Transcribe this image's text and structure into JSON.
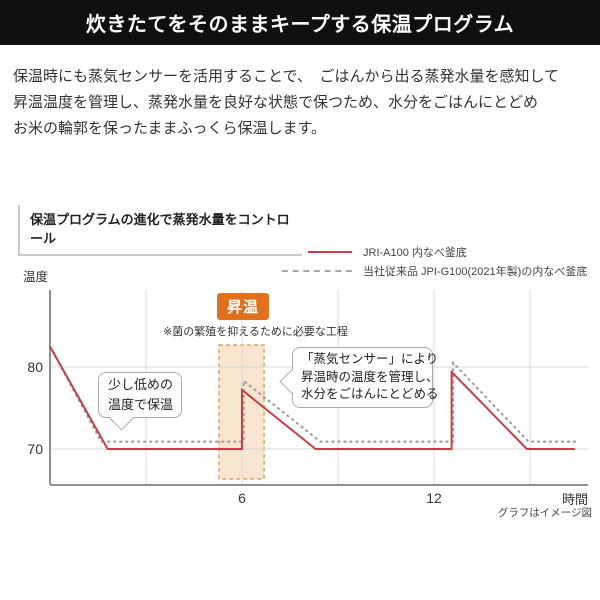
{
  "header": {
    "title": "炊きたてをそのままキープする保温プログラム"
  },
  "intro": {
    "lines": [
      "保温時にも蒸気センサーを活用することで、　ごはんから出る蒸発水量を感知して",
      "昇温温度を管理し、蒸発水量を良好な状態で保つため、水分をごはんにとどめ",
      "お米の輪郭を保ったままふっくら保温します。"
    ]
  },
  "section": {
    "title": "保温プログラムの進化で蒸発水量をコントロール"
  },
  "legend": {
    "items": [
      {
        "label": "JRI-A100 内なべ釜底",
        "style": "solid",
        "color": "#c83d46"
      },
      {
        "label": "当社従来品 JPI-G100(2021年製)の内なべ釜底",
        "style": "dashed",
        "color": "#a5a5a5"
      }
    ]
  },
  "axis": {
    "ylabel": "温度",
    "xlabel": "時間",
    "y_tick_80": "80",
    "y_tick_70": "70",
    "x_tick_6": "6",
    "x_tick_12": "12",
    "footnote": "グラフはイメージ図"
  },
  "rise": {
    "badge": "昇温",
    "note": "※菌の繁殖を抑えるために必要な工程"
  },
  "callout1": {
    "lines": [
      "少し低めの",
      "温度で保温"
    ]
  },
  "callout2": {
    "lines": [
      "「蒸気センサー」により",
      "昇温時の温度を管理し、",
      "水分をごはんにとどめる"
    ]
  },
  "colors": {
    "header_bg": "#101010",
    "accent_red": "#c83d46",
    "series_gray": "#9a9a9a",
    "badge_orange": "#e2711e",
    "band_fill": "#f8e5cf",
    "band_border": "#dca468",
    "grid": "#d9d9d9",
    "axis": "#8f8f8f"
  },
  "chart_data": {
    "type": "line",
    "title": "保温プログラムの進化で蒸発水量をコントロール",
    "xlabel": "時間",
    "ylabel": "温度",
    "x_unit": "hours",
    "y_unit": "deg C",
    "x_ticks": [
      6,
      12
    ],
    "y_ticks": [
      80,
      70
    ],
    "xlim": [
      0,
      16.8
    ],
    "ylim": [
      65.5,
      89.5
    ],
    "grid_x": [
      3,
      6,
      9,
      12,
      15
    ],
    "grid_on": true,
    "legend_position": "top-right",
    "series": [
      {
        "name": "JRI-A100 内なべ釜底",
        "style": "solid",
        "color": "#c83d46",
        "points": [
          [
            0,
            82.5
          ],
          [
            1.8,
            70
          ],
          [
            6,
            70
          ],
          [
            6,
            77.2
          ],
          [
            8.3,
            70
          ],
          [
            12.55,
            70
          ],
          [
            12.55,
            79.4
          ],
          [
            14.9,
            70
          ],
          [
            16.4,
            70
          ]
        ]
      },
      {
        "name": "当社従来品 JPI-G100(2021年製)の内なべ釜底",
        "style": "dashed",
        "color": "#9a9a9a",
        "points": [
          [
            0,
            82.5
          ],
          [
            1.6,
            70.9
          ],
          [
            6.05,
            70.9
          ],
          [
            6.05,
            78.3
          ],
          [
            8.45,
            70.9
          ],
          [
            12.6,
            70.9
          ],
          [
            12.6,
            80.5
          ],
          [
            14.95,
            70.9
          ],
          [
            16.45,
            70.9
          ]
        ]
      }
    ],
    "annotations": {
      "rise_band": {
        "x0": 5.28,
        "x1": 6.69,
        "label": "昇温",
        "note": "※菌の繁殖を抑えるために必要な工程"
      },
      "callout_low_temp": "少し低めの温度で保温",
      "callout_sensor": "「蒸気センサー」により昇温時の温度を管理し、水分をごはんにとどめる"
    },
    "footnote": "グラフはイメージ図"
  }
}
